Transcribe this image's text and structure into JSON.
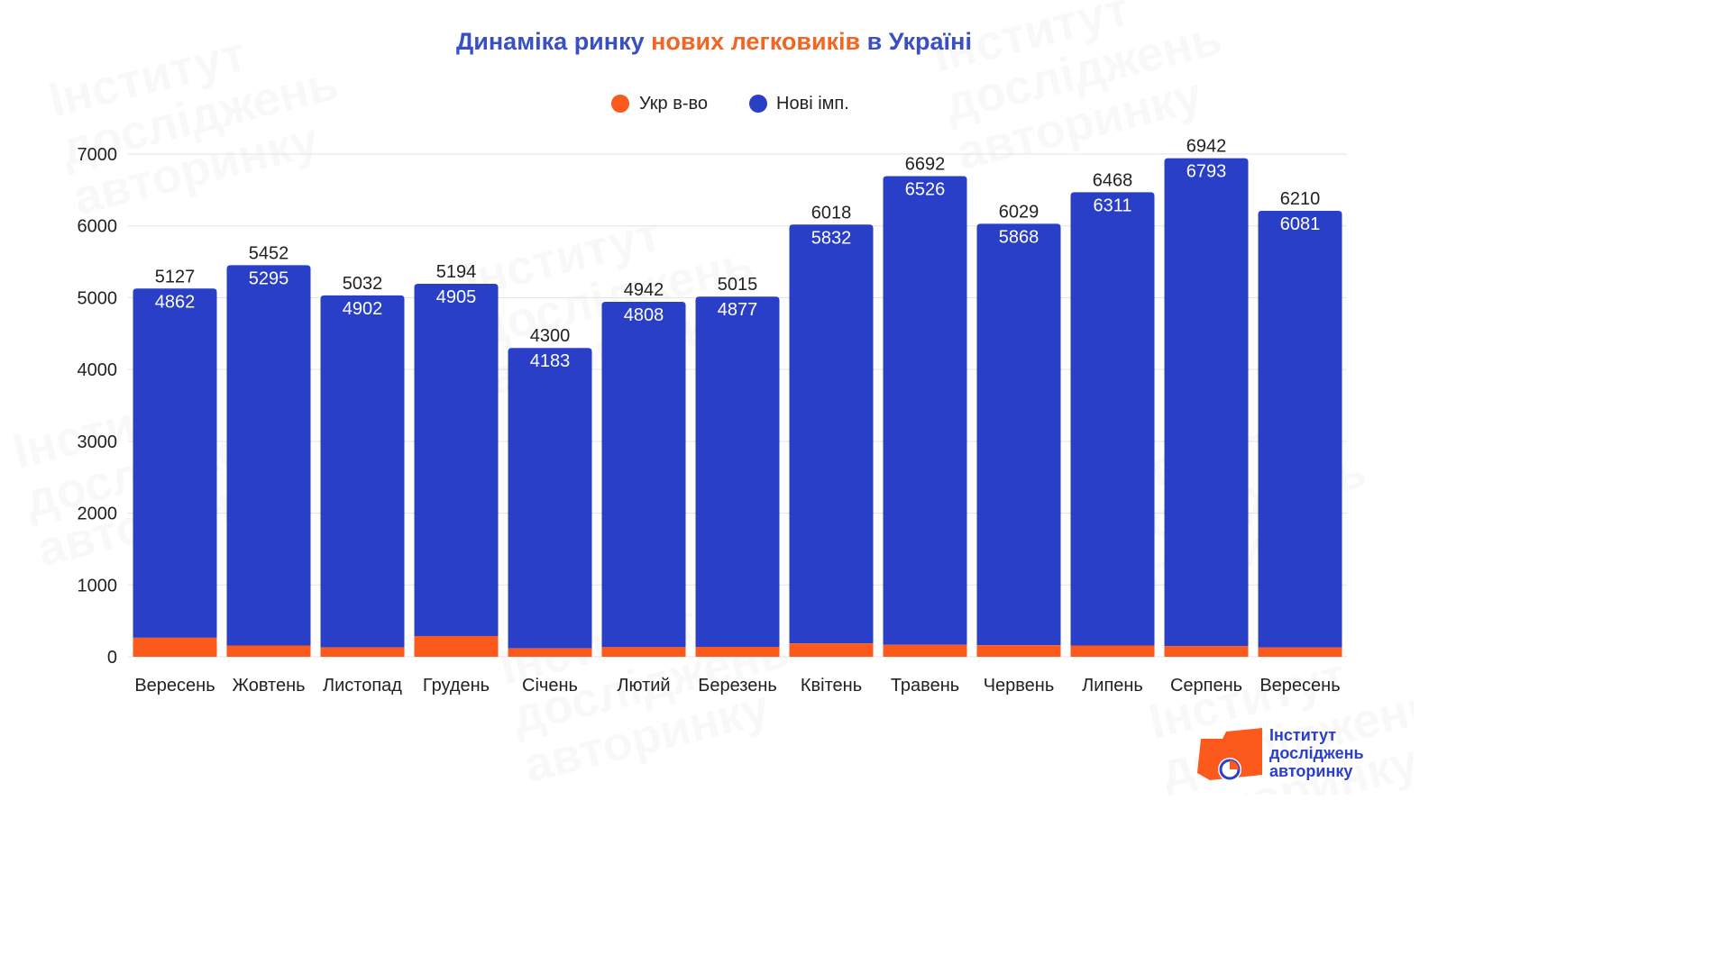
{
  "title": {
    "part1": "Динаміка ринку ",
    "part2": "нових легковиків",
    "part3": " в Україні",
    "color_main": "#3a4fc4",
    "color_accent": "#f26522"
  },
  "legend": {
    "items": [
      {
        "label": "Укр в-во",
        "color": "#fc5a1c"
      },
      {
        "label": "Нові імп.",
        "color": "#2a3fc8"
      }
    ]
  },
  "logo": {
    "lines": [
      "Інститут",
      "досліджень",
      "авторинку"
    ],
    "color": "#2b3fc7",
    "mark_color": "#fc5a1c"
  },
  "watermark": {
    "lines": [
      "Інститут",
      "досліджень",
      "авторинку"
    ]
  },
  "chart_data": {
    "type": "bar",
    "stacked": true,
    "categories": [
      "Вересень",
      "Жовтень",
      "Листопад",
      "Грудень",
      "Січень",
      "Лютий",
      "Березень",
      "Квітень",
      "Травень",
      "Червень",
      "Липень",
      "Серпень",
      "Вересень"
    ],
    "series": [
      {
        "name": "Укр в-во",
        "color": "#fc5a1c",
        "values": [
          265,
          157,
          130,
          289,
          117,
          134,
          138,
          186,
          166,
          161,
          157,
          149,
          129
        ]
      },
      {
        "name": "Нові імп.",
        "color": "#2a3fc8",
        "values": [
          4862,
          5295,
          4902,
          4905,
          4183,
          4808,
          4877,
          5832,
          6526,
          5868,
          6311,
          6793,
          6081
        ]
      }
    ],
    "totals": [
      5127,
      5452,
      5032,
      5194,
      4300,
      4942,
      5015,
      6018,
      6692,
      6029,
      6468,
      6942,
      6210
    ],
    "y_ticks": [
      0,
      1000,
      2000,
      3000,
      4000,
      5000,
      6000,
      7000
    ],
    "ylim": [
      0,
      7000
    ],
    "grid": true,
    "legend_position": "top-center"
  }
}
